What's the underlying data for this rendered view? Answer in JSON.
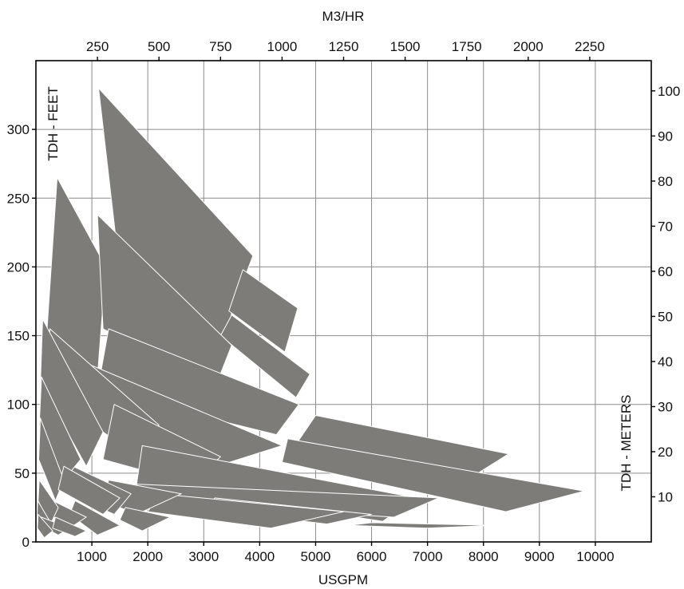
{
  "chart_data": {
    "type": "area",
    "title": "",
    "x_bottom": {
      "label": "USGPM",
      "range": [
        0,
        11000
      ],
      "ticks": [
        1000,
        2000,
        3000,
        4000,
        5000,
        6000,
        7000,
        8000,
        9000,
        10000
      ]
    },
    "x_top": {
      "label": "M3/HR",
      "range": [
        0,
        2500
      ],
      "ticks": [
        250,
        500,
        750,
        1000,
        1250,
        1500,
        1750,
        2000,
        2250
      ]
    },
    "y_left": {
      "label": "TDH - FEET",
      "range": [
        0,
        350
      ],
      "ticks": [
        0,
        50,
        100,
        150,
        200,
        250,
        300
      ]
    },
    "y_right": {
      "label": "TDH - METERS",
      "range": [
        0,
        106.7
      ],
      "ticks": [
        10,
        20,
        30,
        40,
        50,
        60,
        70,
        80,
        90,
        100
      ]
    },
    "grid": true,
    "fill_color": "#7d7c78",
    "regions": [
      {
        "points": [
          [
            1120,
            330
          ],
          [
            3880,
            208
          ],
          [
            3500,
            167
          ],
          [
            3400,
            143
          ],
          [
            1500,
            196
          ]
        ]
      },
      {
        "points": [
          [
            380,
            265
          ],
          [
            1250,
            200
          ],
          [
            1100,
            120
          ],
          [
            200,
            155
          ]
        ]
      },
      {
        "points": [
          [
            3880,
            208
          ],
          [
            3500,
            168
          ]
        ]
      },
      {
        "points": [
          [
            3700,
            198
          ],
          [
            4680,
            170
          ],
          [
            4450,
            138
          ],
          [
            3450,
            168
          ]
        ]
      },
      {
        "points": [
          [
            3500,
            165
          ],
          [
            4900,
            122
          ],
          [
            4650,
            105
          ],
          [
            3300,
            150
          ]
        ]
      },
      {
        "points": [
          [
            1100,
            238
          ],
          [
            3500,
            143
          ],
          [
            3200,
            112
          ],
          [
            1200,
            155
          ]
        ]
      },
      {
        "points": [
          [
            1300,
            155
          ],
          [
            4700,
            100
          ],
          [
            4300,
            78
          ],
          [
            1100,
            110
          ]
        ]
      },
      {
        "points": [
          [
            5000,
            92
          ],
          [
            8450,
            64
          ],
          [
            7900,
            50
          ],
          [
            4600,
            68
          ]
        ]
      },
      {
        "points": [
          [
            4500,
            75
          ],
          [
            9800,
            37
          ],
          [
            8400,
            22
          ],
          [
            4400,
            58
          ]
        ]
      },
      {
        "points": [
          [
            900,
            130
          ],
          [
            4400,
            70
          ],
          [
            3000,
            52
          ],
          [
            700,
            95
          ]
        ]
      },
      {
        "points": [
          [
            250,
            155
          ],
          [
            2200,
            85
          ],
          [
            1800,
            62
          ],
          [
            200,
            110
          ]
        ]
      },
      {
        "points": [
          [
            120,
            162
          ],
          [
            1200,
            80
          ],
          [
            900,
            55
          ],
          [
            80,
            115
          ]
        ]
      },
      {
        "points": [
          [
            1400,
            100
          ],
          [
            3300,
            62
          ],
          [
            2800,
            42
          ],
          [
            1200,
            60
          ]
        ]
      },
      {
        "points": [
          [
            1900,
            70
          ],
          [
            6800,
            32
          ],
          [
            6200,
            15
          ],
          [
            1800,
            42
          ]
        ]
      },
      {
        "points": [
          [
            1800,
            42
          ],
          [
            7200,
            32
          ],
          [
            6400,
            18
          ],
          [
            1800,
            30
          ]
        ]
      },
      {
        "points": [
          [
            3200,
            32
          ],
          [
            6000,
            20
          ],
          [
            5200,
            13
          ],
          [
            3000,
            24
          ]
        ]
      },
      {
        "points": [
          [
            2200,
            35
          ],
          [
            5500,
            22
          ],
          [
            4200,
            10
          ],
          [
            2000,
            22
          ]
        ]
      },
      {
        "points": [
          [
            1300,
            45
          ],
          [
            2600,
            35
          ],
          [
            1800,
            20
          ],
          [
            1200,
            30
          ]
        ]
      },
      {
        "points": [
          [
            400,
            60
          ],
          [
            1700,
            35
          ],
          [
            1400,
            20
          ],
          [
            300,
            40
          ]
        ]
      },
      {
        "points": [
          [
            100,
            120
          ],
          [
            800,
            60
          ],
          [
            500,
            45
          ],
          [
            60,
            85
          ]
        ]
      },
      {
        "points": [
          [
            80,
            90
          ],
          [
            500,
            45
          ],
          [
            350,
            30
          ],
          [
            50,
            60
          ]
        ]
      },
      {
        "points": [
          [
            500,
            55
          ],
          [
            1500,
            32
          ],
          [
            1200,
            20
          ],
          [
            400,
            38
          ]
        ]
      },
      {
        "points": [
          [
            700,
            30
          ],
          [
            1500,
            12
          ],
          [
            1100,
            5
          ],
          [
            600,
            20
          ]
        ]
      },
      {
        "points": [
          [
            1600,
            25
          ],
          [
            2400,
            18
          ],
          [
            1900,
            8
          ],
          [
            1500,
            16
          ]
        ]
      },
      {
        "points": [
          [
            300,
            30
          ],
          [
            900,
            18
          ],
          [
            600,
            10
          ],
          [
            250,
            20
          ]
        ]
      },
      {
        "points": [
          [
            60,
            45
          ],
          [
            400,
            25
          ],
          [
            250,
            12
          ],
          [
            40,
            30
          ]
        ]
      },
      {
        "points": [
          [
            30,
            30
          ],
          [
            250,
            15
          ],
          [
            150,
            8
          ],
          [
            20,
            18
          ]
        ]
      },
      {
        "points": [
          [
            100,
            18
          ],
          [
            600,
            10
          ],
          [
            400,
            5
          ],
          [
            80,
            12
          ]
        ]
      },
      {
        "points": [
          [
            6000,
            14
          ],
          [
            8200,
            12
          ],
          [
            7000,
            10
          ],
          [
            5600,
            12
          ]
        ]
      },
      {
        "points": [
          [
            40,
            20
          ],
          [
            300,
            8
          ],
          [
            150,
            3
          ],
          [
            25,
            10
          ]
        ]
      },
      {
        "points": [
          [
            350,
            18
          ],
          [
            900,
            8
          ],
          [
            700,
            4
          ],
          [
            300,
            10
          ]
        ]
      }
    ]
  }
}
